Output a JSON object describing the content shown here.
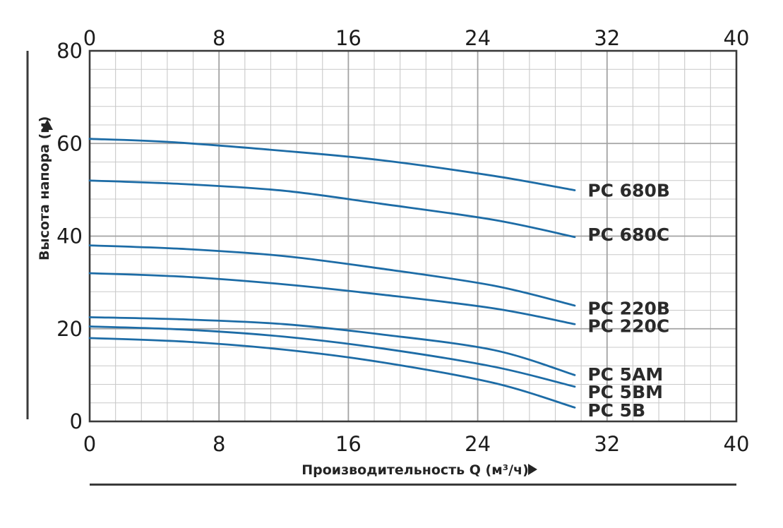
{
  "chart_data": {
    "type": "line",
    "title": "",
    "xlabel": "Производительность Q (м³/ч)",
    "ylabel": "Высота напора (м)",
    "x_axis_arrow": "right",
    "y_axis_arrow": "up",
    "xlim": [
      0,
      40
    ],
    "ylim": [
      0,
      80
    ],
    "x_ticks": [
      0,
      8,
      16,
      24,
      32,
      40
    ],
    "x_tick_labels": [
      "0",
      "8",
      "16",
      "24",
      "32",
      "40"
    ],
    "x_ticks_shown_top_and_bottom": true,
    "y_ticks": [
      0,
      20,
      40,
      60,
      80
    ],
    "y_tick_labels": [
      "0",
      "20",
      "40",
      "60",
      "80"
    ],
    "grid": true,
    "minor_grid_step_x_units": 1.6,
    "minor_grid_step_y_units": 4,
    "legend_position": "inline-end-of-curve",
    "series": [
      {
        "name": "PC 680B",
        "points": [
          [
            0,
            61
          ],
          [
            5,
            60.3
          ],
          [
            12,
            58.4
          ],
          [
            18,
            56.4
          ],
          [
            25,
            53
          ],
          [
            30,
            49.9
          ]
        ],
        "label_at": [
          30.8,
          49.8
        ]
      },
      {
        "name": "PC 680C",
        "points": [
          [
            0,
            52
          ],
          [
            6,
            51.2
          ],
          [
            12,
            49.8
          ],
          [
            18,
            47
          ],
          [
            25,
            43.5
          ],
          [
            30,
            39.8
          ]
        ],
        "label_at": [
          30.8,
          40.3
        ]
      },
      {
        "name": "PC 220B",
        "points": [
          [
            0,
            38
          ],
          [
            6,
            37.2
          ],
          [
            12,
            35.7
          ],
          [
            18,
            33
          ],
          [
            25,
            29.3
          ],
          [
            30,
            25
          ]
        ],
        "label_at": [
          30.8,
          24.4
        ]
      },
      {
        "name": "PC 220C",
        "points": [
          [
            0,
            32
          ],
          [
            6,
            31.2
          ],
          [
            12,
            29.6
          ],
          [
            18,
            27.4
          ],
          [
            25,
            24.4
          ],
          [
            30,
            21
          ]
        ],
        "label_at": [
          30.8,
          20.6
        ]
      },
      {
        "name": "PC 5AM",
        "points": [
          [
            0,
            22.5
          ],
          [
            6,
            22
          ],
          [
            12,
            21
          ],
          [
            18,
            18.8
          ],
          [
            25,
            15.4
          ],
          [
            30,
            10
          ]
        ],
        "label_at": [
          30.8,
          10.1
        ]
      },
      {
        "name": "PC 5BM",
        "points": [
          [
            0,
            20.5
          ],
          [
            6,
            19.8
          ],
          [
            12,
            18.3
          ],
          [
            18,
            15.8
          ],
          [
            25,
            11.8
          ],
          [
            30,
            7.5
          ]
        ],
        "label_at": [
          30.8,
          6.3
        ]
      },
      {
        "name": "PC 5B",
        "points": [
          [
            0,
            18
          ],
          [
            6,
            17.2
          ],
          [
            12,
            15.5
          ],
          [
            18,
            12.8
          ],
          [
            25,
            8.3
          ],
          [
            30,
            3
          ]
        ],
        "label_at": [
          30.8,
          2.4
        ]
      }
    ],
    "colors": {
      "curve": "#1d6ca6",
      "grid_minor": "#c9c9c9",
      "grid_major": "#a3a3a3",
      "frame": "#3a3a3a",
      "text": "#242424",
      "accent_bar": "#3a3a3a"
    }
  }
}
